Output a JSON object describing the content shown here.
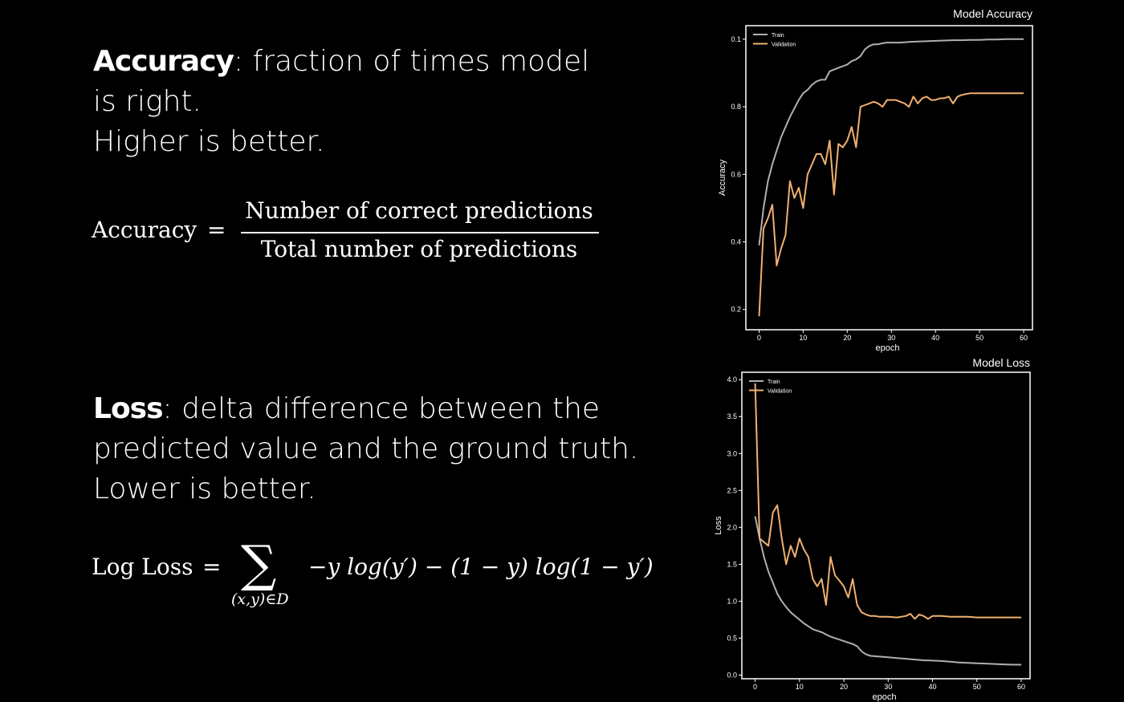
{
  "accuracy_section": {
    "term": "Accuracy",
    "line1": ": fraction of times model",
    "line2": "is right.",
    "line3": "Higher is better.",
    "formula": {
      "lhs": "Accuracy",
      "eq": "=",
      "numerator": "Number of correct predictions",
      "denominator": "Total number of predictions"
    }
  },
  "loss_section": {
    "term": "Loss",
    "line1": ": delta difference between the",
    "line2": "predicted value and the ground truth.",
    "line3": "Lower is better.",
    "formula": {
      "lhs": "Log Loss",
      "eq": "=",
      "sigma": "∑",
      "subscript": "(x,y)∈D",
      "rhs": "−y log(y′) − (1 − y) log(1 − y′)"
    }
  },
  "chart_data": [
    {
      "type": "line",
      "title": "Model Accuracy",
      "xlabel": "epoch",
      "ylabel": "Accuracy",
      "xlim": [
        -3,
        62
      ],
      "ylim": [
        0.14,
        1.04
      ],
      "xticks": [
        0,
        10,
        20,
        30,
        40,
        50,
        60
      ],
      "yticks": [
        0.2,
        0.4,
        0.6,
        0.8
      ],
      "top_tick_label": "0.1",
      "legend_placement": "top-left",
      "grid": false,
      "series": [
        {
          "name": "Train",
          "color": "#b0b0b0",
          "x": [
            0,
            1,
            2,
            3,
            4,
            5,
            6,
            7,
            8,
            9,
            10,
            11,
            12,
            13,
            14,
            15,
            16,
            17,
            18,
            19,
            20,
            21,
            22,
            23,
            24,
            25,
            26,
            27,
            28,
            29,
            30,
            32,
            34,
            36,
            38,
            40,
            42,
            44,
            46,
            48,
            50,
            52,
            54,
            56,
            58,
            60
          ],
          "y": [
            0.39,
            0.5,
            0.58,
            0.63,
            0.67,
            0.71,
            0.74,
            0.77,
            0.795,
            0.82,
            0.84,
            0.85,
            0.865,
            0.875,
            0.88,
            0.88,
            0.905,
            0.91,
            0.915,
            0.92,
            0.925,
            0.935,
            0.94,
            0.95,
            0.97,
            0.98,
            0.985,
            0.985,
            0.988,
            0.99,
            0.99,
            0.99,
            0.992,
            0.993,
            0.994,
            0.995,
            0.996,
            0.997,
            0.997,
            0.998,
            0.998,
            0.999,
            0.999,
            1.0,
            1.0,
            1.0
          ]
        },
        {
          "name": "Validation",
          "color": "#f0b070",
          "x": [
            0,
            1,
            2,
            3,
            4,
            5,
            6,
            7,
            8,
            9,
            10,
            11,
            12,
            13,
            14,
            15,
            16,
            17,
            18,
            19,
            20,
            21,
            22,
            23,
            24,
            25,
            26,
            27,
            28,
            29,
            30,
            31,
            32,
            33,
            34,
            35,
            36,
            37,
            38,
            39,
            40,
            41,
            42,
            43,
            44,
            45,
            46,
            47,
            48,
            50,
            52,
            54,
            56,
            58,
            60
          ],
          "y": [
            0.18,
            0.44,
            0.47,
            0.51,
            0.33,
            0.38,
            0.42,
            0.58,
            0.53,
            0.56,
            0.5,
            0.6,
            0.63,
            0.66,
            0.66,
            0.63,
            0.7,
            0.54,
            0.69,
            0.68,
            0.7,
            0.74,
            0.68,
            0.8,
            0.805,
            0.81,
            0.815,
            0.81,
            0.8,
            0.82,
            0.82,
            0.82,
            0.815,
            0.81,
            0.8,
            0.83,
            0.81,
            0.825,
            0.83,
            0.82,
            0.82,
            0.825,
            0.825,
            0.83,
            0.81,
            0.83,
            0.835,
            0.838,
            0.84,
            0.84,
            0.84,
            0.84,
            0.84,
            0.84,
            0.84
          ]
        }
      ]
    },
    {
      "type": "line",
      "title": "Model Loss",
      "xlabel": "epoch",
      "ylabel": "Loss",
      "xlim": [
        -3,
        62
      ],
      "ylim": [
        -0.05,
        4.1
      ],
      "xticks": [
        0,
        10,
        20,
        30,
        40,
        50,
        60
      ],
      "yticks": [
        0.0,
        0.5,
        1.0,
        1.5,
        2.0,
        2.5,
        3.0,
        3.5,
        4.0
      ],
      "legend_placement": "top-left",
      "grid": false,
      "series": [
        {
          "name": "Train",
          "color": "#b0b0b0",
          "x": [
            0,
            1,
            2,
            3,
            4,
            5,
            6,
            7,
            8,
            9,
            10,
            11,
            12,
            13,
            14,
            15,
            16,
            17,
            18,
            19,
            20,
            21,
            22,
            23,
            24,
            25,
            26,
            28,
            30,
            32,
            34,
            36,
            38,
            40,
            42,
            44,
            46,
            48,
            50,
            52,
            54,
            56,
            58,
            60
          ],
          "y": [
            2.15,
            1.85,
            1.6,
            1.4,
            1.25,
            1.1,
            1.0,
            0.92,
            0.85,
            0.8,
            0.75,
            0.7,
            0.66,
            0.62,
            0.6,
            0.58,
            0.55,
            0.52,
            0.5,
            0.48,
            0.46,
            0.44,
            0.42,
            0.39,
            0.32,
            0.28,
            0.26,
            0.25,
            0.24,
            0.23,
            0.22,
            0.21,
            0.2,
            0.195,
            0.19,
            0.18,
            0.17,
            0.165,
            0.16,
            0.155,
            0.15,
            0.145,
            0.14,
            0.14
          ]
        },
        {
          "name": "Validation",
          "color": "#f0b070",
          "x": [
            0,
            1,
            2,
            3,
            4,
            5,
            6,
            7,
            8,
            9,
            10,
            11,
            12,
            13,
            14,
            15,
            16,
            17,
            18,
            19,
            20,
            21,
            22,
            23,
            24,
            25,
            26,
            27,
            28,
            30,
            32,
            34,
            35,
            36,
            37,
            38,
            39,
            40,
            42,
            44,
            46,
            48,
            50,
            52,
            54,
            56,
            58,
            60
          ],
          "y": [
            3.95,
            1.85,
            1.8,
            1.75,
            2.2,
            2.3,
            1.85,
            1.5,
            1.75,
            1.6,
            1.85,
            1.7,
            1.6,
            1.3,
            1.2,
            1.3,
            0.95,
            1.6,
            1.35,
            1.28,
            1.2,
            1.05,
            1.3,
            0.95,
            0.85,
            0.82,
            0.8,
            0.8,
            0.79,
            0.79,
            0.78,
            0.8,
            0.83,
            0.76,
            0.82,
            0.8,
            0.76,
            0.8,
            0.8,
            0.79,
            0.79,
            0.79,
            0.78,
            0.78,
            0.78,
            0.78,
            0.78,
            0.78
          ]
        }
      ]
    }
  ]
}
